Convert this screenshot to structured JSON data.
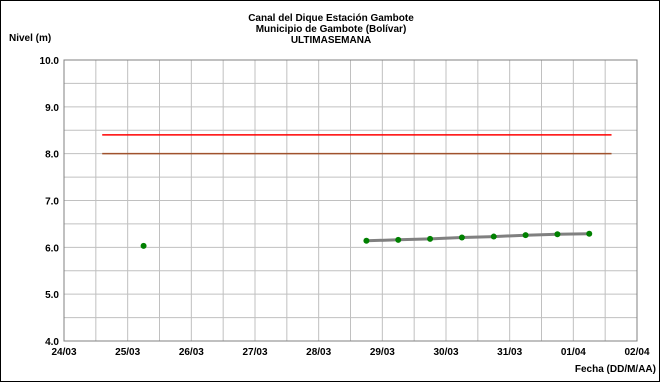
{
  "chart_data": {
    "type": "line",
    "title": "Canal del Dique  Estación Gambote",
    "subtitle": "Municipio de Gambote (Bolívar)",
    "subtitle2": "ULTIMASEMANA",
    "ylabel": "Nivel (m)",
    "xlabel": "Fecha (DD/M/AA)",
    "xlim": [
      0,
      9
    ],
    "ylim": [
      4.0,
      10.0
    ],
    "x_ticks": [
      "24/03",
      "25/03",
      "26/03",
      "27/03",
      "28/03",
      "29/03",
      "30/03",
      "31/03",
      "01/04",
      "02/04"
    ],
    "y_ticks": [
      "4.0",
      "5.0",
      "6.0",
      "7.0",
      "8.0",
      "9.0",
      "10.0"
    ],
    "grid": true,
    "minor_x_grid": true,
    "series": [
      {
        "color": "#008000",
        "line_color": "#808080",
        "points": [
          {
            "x": 1.25,
            "y": 6.03
          },
          {
            "x": 4.75,
            "y": 6.14
          },
          {
            "x": 5.25,
            "y": 6.16
          },
          {
            "x": 5.75,
            "y": 6.18
          },
          {
            "x": 6.25,
            "y": 6.21
          },
          {
            "x": 6.75,
            "y": 6.23
          },
          {
            "x": 7.25,
            "y": 6.26
          },
          {
            "x": 7.75,
            "y": 6.28
          },
          {
            "x": 8.25,
            "y": 6.29
          }
        ],
        "line_from_index": 1
      }
    ],
    "threshold_lines": [
      {
        "y": 8.4,
        "x_start": 0.6,
        "x_end": 8.6,
        "color": "#ff0000"
      },
      {
        "y": 8.0,
        "x_start": 0.6,
        "x_end": 8.6,
        "color": "#a0522d"
      }
    ]
  }
}
